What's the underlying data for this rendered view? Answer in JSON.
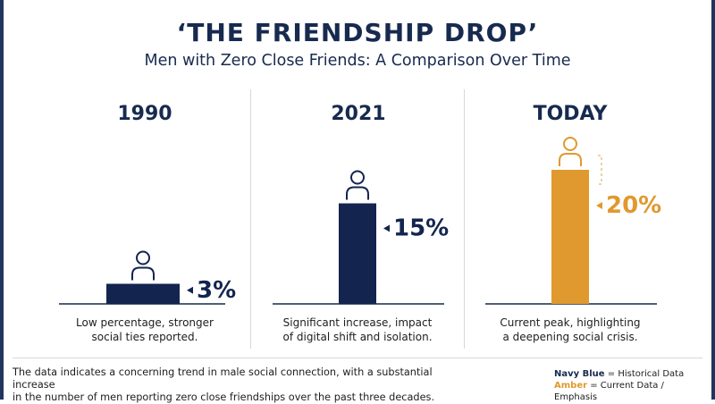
{
  "header": {
    "title": "‘THE FRIENDSHIP DROP’",
    "subtitle": "Men with Zero Close Friends: A Comparison Over Time"
  },
  "chart_data": {
    "type": "bar",
    "categories": [
      "1990",
      "2021",
      "TODAY"
    ],
    "values": [
      3,
      15,
      20
    ],
    "value_labels": [
      "3%",
      "15%",
      "20%"
    ],
    "units": "%",
    "ylim": [
      0,
      20
    ],
    "grid": false,
    "descriptions": [
      [
        "Low percentage, stronger",
        "social ties reported."
      ],
      [
        "Significant increase, impact",
        "of digital shift and isolation."
      ],
      [
        "Current peak, highlighting",
        "a deepening social crisis."
      ]
    ],
    "colors": [
      "#13254f",
      "#13254f",
      "#e0992e"
    ]
  },
  "footer": {
    "line1": "The data indicates a concerning trend in male social connection, with a substantial increase",
    "line2": "in the number of men reporting zero close friendships over the past three decades."
  },
  "legend": {
    "navy_label": "Navy Blue",
    "navy_text": " = Historical Data",
    "amber_label": "Amber",
    "amber_text": " = Current Data / Emphasis"
  },
  "icons": {
    "person": "person-icon",
    "arrow": "arrow-left-icon"
  }
}
